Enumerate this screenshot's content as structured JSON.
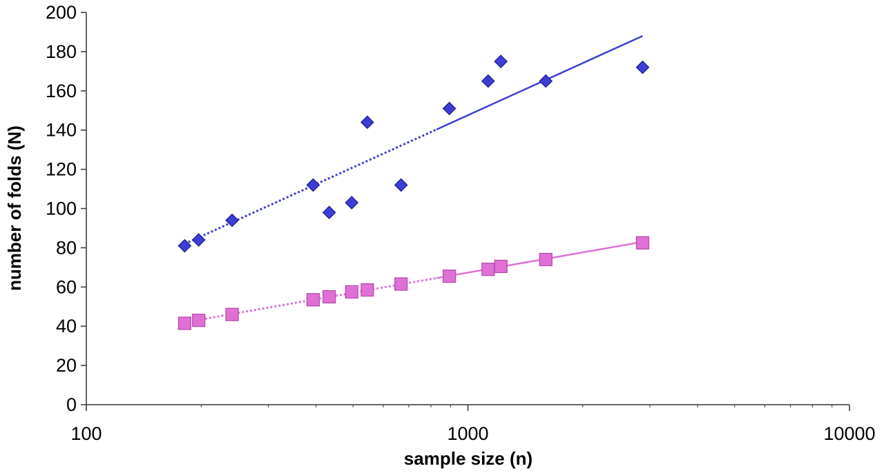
{
  "chart_data": {
    "type": "scatter",
    "title": "",
    "xlabel": "sample size (n)",
    "ylabel": "number of folds (N)",
    "xscale": "log",
    "xlim": [
      100,
      10000
    ],
    "ylim": [
      0,
      200
    ],
    "xticks": [
      100,
      1000,
      10000
    ],
    "xtick_labels": [
      "100",
      "1000",
      "10000"
    ],
    "yticks": [
      0,
      20,
      40,
      60,
      80,
      100,
      120,
      140,
      160,
      180,
      200
    ],
    "ytick_labels": [
      "0",
      "20",
      "40",
      "60",
      "80",
      "100",
      "120",
      "140",
      "160",
      "180",
      "200"
    ],
    "grid": false,
    "legend": "none",
    "series": [
      {
        "marker": "diamond",
        "color": "#3d3dd6",
        "x": [
          181,
          197,
          241,
          393,
          433,
          496,
          545,
          668,
          894,
          1130,
          1220,
          1600,
          2870
        ],
        "y": [
          81,
          84,
          94,
          112,
          98,
          103,
          144,
          112,
          151,
          165,
          175,
          165,
          172
        ],
        "trendline": {
          "x": [
            181,
            2870
          ],
          "y": [
            82,
            188
          ],
          "style": "dotted-to-solid"
        }
      },
      {
        "marker": "square",
        "color": "#e070d6",
        "x": [
          181,
          197,
          241,
          393,
          433,
          496,
          545,
          668,
          894,
          1130,
          1220,
          1600,
          2870
        ],
        "y": [
          41.5,
          43,
          46,
          53.5,
          55,
          57.5,
          58.5,
          61.5,
          65.5,
          69,
          70.5,
          74,
          82.5
        ],
        "trendline": {
          "x": [
            181,
            2870
          ],
          "y": [
            42,
            83
          ],
          "style": "dotted-to-solid"
        }
      }
    ]
  }
}
